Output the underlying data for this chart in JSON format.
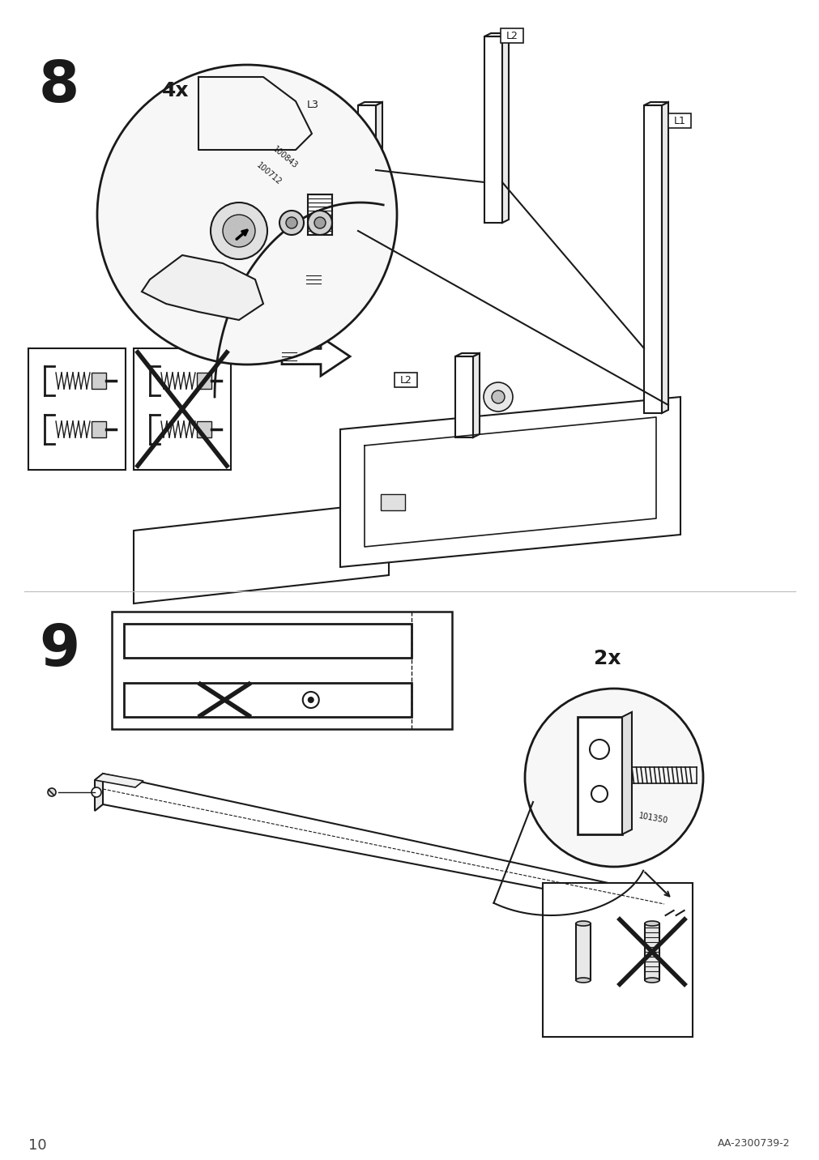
{
  "page_number": "10",
  "page_code": "AA-2300739-2",
  "bg_color": "#ffffff",
  "line_color": "#1a1a1a",
  "step8_number": "8",
  "step9_number": "9",
  "step8_4x": "4x",
  "step9_2x": "2x",
  "part_code_100843": "100843",
  "part_code_100712": "100712",
  "part_code_101350": "101350"
}
